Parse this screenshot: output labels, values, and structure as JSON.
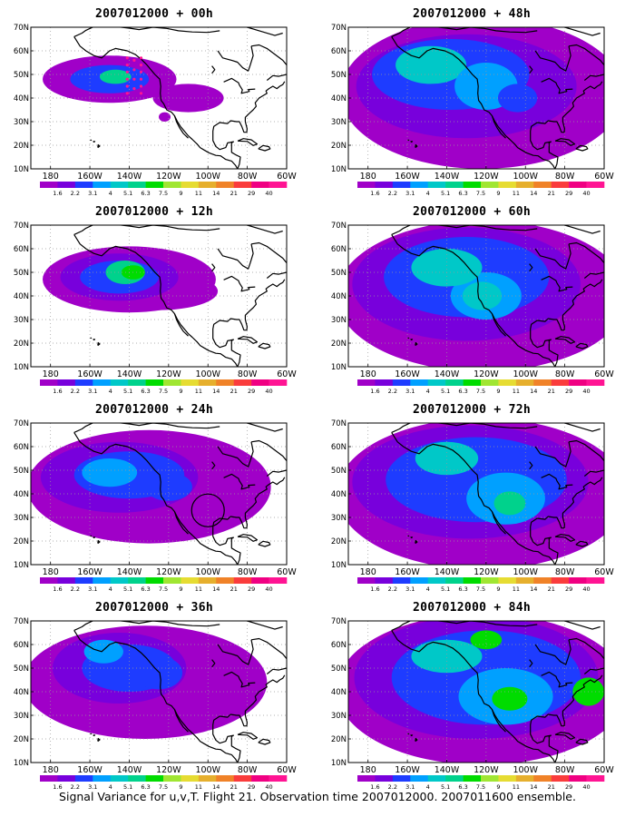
{
  "panels": [
    {
      "title": "2007012000 + 00h",
      "level": 0,
      "obs": true,
      "circle": false
    },
    {
      "title": "2007012000 + 48h",
      "level": 4,
      "obs": false,
      "circle": false
    },
    {
      "title": "2007012000 + 12h",
      "level": 1,
      "obs": false,
      "circle": false
    },
    {
      "title": "2007012000 + 60h",
      "level": 5,
      "obs": false,
      "circle": false
    },
    {
      "title": "2007012000 + 24h",
      "level": 2,
      "obs": false,
      "circle": true
    },
    {
      "title": "2007012000 + 72h",
      "level": 6,
      "obs": false,
      "circle": false
    },
    {
      "title": "2007012000 + 36h",
      "level": 3,
      "obs": false,
      "circle": false
    },
    {
      "title": "2007012000 + 84h",
      "level": 7,
      "obs": false,
      "circle": false
    }
  ],
  "axes": {
    "lat_labels": [
      "70N",
      "60N",
      "50N",
      "40N",
      "30N",
      "20N",
      "10N"
    ],
    "lon_labels": [
      "180",
      "160W",
      "140W",
      "120W",
      "100W",
      "80W",
      "60W"
    ]
  },
  "colorbar": {
    "labels": [
      "1.6",
      "2.2",
      "3.1",
      "4",
      "5.1",
      "6.3",
      "7.5",
      "9",
      "11",
      "14",
      "21",
      "29",
      "40"
    ],
    "colors": [
      "#a000c8",
      "#7800dc",
      "#1e3cff",
      "#00a0ff",
      "#00c8c8",
      "#00d28c",
      "#00dc00",
      "#a0e632",
      "#e6dc32",
      "#e6af2d",
      "#f08228",
      "#fa3c3c",
      "#f00082",
      "#ff1493"
    ]
  },
  "caption": "Signal Variance for u,v,T. Flight 21. Observation time 2007012000. 2007011600 ensemble."
}
